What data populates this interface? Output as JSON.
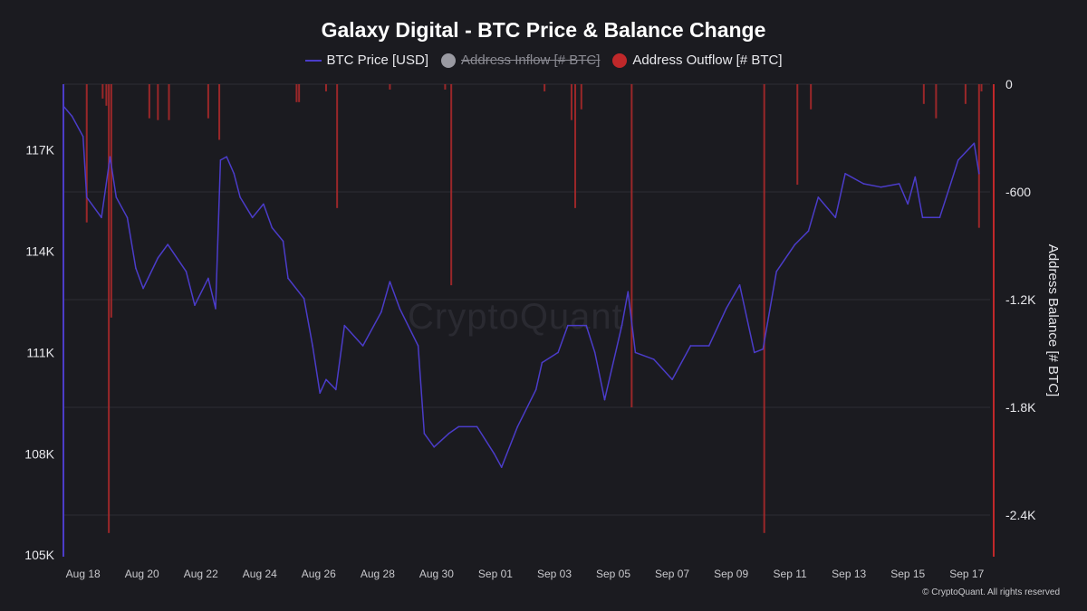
{
  "chart_data": {
    "type": "line+bar",
    "title": "Galaxy Digital - BTC Price & Balance Change",
    "legend": [
      {
        "name": "BTC Price [USD]",
        "color": "#4b3cc9",
        "marker": "line",
        "hidden": false
      },
      {
        "name": "Address Inflow [# BTC]",
        "color": "#9a9aa2",
        "marker": "dot",
        "hidden": true
      },
      {
        "name": "Address Outflow [# BTC]",
        "color": "#c0282a",
        "marker": "dot",
        "hidden": false
      }
    ],
    "legend_position": "top-center",
    "grid": true,
    "x_ticks": [
      "Aug 18",
      "Aug 20",
      "Aug 22",
      "Aug 24",
      "Aug 26",
      "Aug 28",
      "Aug 30",
      "Sep 01",
      "Sep 03",
      "Sep 05",
      "Sep 07",
      "Sep 09",
      "Sep 11",
      "Sep 13",
      "Sep 15",
      "Sep 17"
    ],
    "xlim": [
      "Aug 17 08:00",
      "Sep 17 19:00"
    ],
    "y_left": {
      "label": "",
      "ticks": [
        "105K",
        "108K",
        "111K",
        "114K",
        "117K"
      ],
      "tick_values": [
        105000,
        108000,
        111000,
        114000,
        117000
      ],
      "ylim": [
        104950,
        118950
      ]
    },
    "y_right": {
      "label": "Address Balance [# BTC]",
      "ticks": [
        "0",
        "-600",
        "-1.2K",
        "-1.8K",
        "-2.4K"
      ],
      "tick_values": [
        0,
        -600,
        -1200,
        -1800,
        -2400
      ],
      "ylim": [
        -2632,
        0
      ]
    },
    "price_series": {
      "name": "BTC Price [USD]",
      "axis": "left",
      "x": [
        "Aug 17 08:00",
        "Aug 17 15:00",
        "Aug 18 00:00",
        "Aug 18 03:00",
        "Aug 18 15:00",
        "Aug 18 22:00",
        "Aug 19 03:00",
        "Aug 19 12:00",
        "Aug 19 19:00",
        "Aug 20 01:00",
        "Aug 20 13:00",
        "Aug 20 21:00",
        "Aug 21 12:00",
        "Aug 21 19:00",
        "Aug 22 06:00",
        "Aug 22 12:00",
        "Aug 22 16:00",
        "Aug 22 21:00",
        "Aug 23 03:00",
        "Aug 23 08:00",
        "Aug 23 18:00",
        "Aug 24 03:00",
        "Aug 24 10:00",
        "Aug 24 19:00",
        "Aug 24 23:00",
        "Aug 25 12:00",
        "Aug 25 19:00",
        "Aug 26 01:00",
        "Aug 26 06:00",
        "Aug 26 14:00",
        "Aug 26 21:00",
        "Aug 27 12:00",
        "Aug 28 03:00",
        "Aug 28 10:00",
        "Aug 28 18:00",
        "Aug 29 09:00",
        "Aug 29 14:00",
        "Aug 29 22:00",
        "Aug 30 10:00",
        "Aug 30 18:00",
        "Aug 31 09:00",
        "Aug 31 23:00",
        "Sep 01 05:00",
        "Sep 01 18:00",
        "Sep 02 09:00",
        "Sep 02 14:00",
        "Sep 03 03:00",
        "Sep 03 11:00",
        "Sep 04 02:00",
        "Sep 04 09:00",
        "Sep 04 17:00",
        "Sep 05 07:00",
        "Sep 05 12:00",
        "Sep 05 18:00",
        "Sep 06 09:00",
        "Sep 07 00:00",
        "Sep 07 15:00",
        "Sep 08 06:00",
        "Sep 08 20:00",
        "Sep 09 07:00",
        "Sep 09 19:00",
        "Sep 10 02:00",
        "Sep 10 13:00",
        "Sep 11 04:00",
        "Sep 11 15:00",
        "Sep 11 23:00",
        "Sep 12 13:00",
        "Sep 12 21:00",
        "Sep 13 12:00",
        "Sep 14 02:00",
        "Sep 14 17:00",
        "Sep 15 00:00",
        "Sep 15 06:00",
        "Sep 15 12:00",
        "Sep 16 02:00",
        "Sep 16 10:00",
        "Sep 16 17:00",
        "Sep 17 06:00",
        "Sep 17 10:00"
      ],
      "y": [
        118300,
        118000,
        117400,
        115600,
        115000,
        116800,
        115600,
        115000,
        113500,
        112900,
        113800,
        114200,
        113400,
        112400,
        113200,
        112300,
        116700,
        116800,
        116300,
        115600,
        115000,
        115400,
        114700,
        114300,
        113200,
        112600,
        111200,
        109800,
        110200,
        109900,
        111800,
        111200,
        112200,
        113100,
        112300,
        111200,
        108600,
        108200,
        108600,
        108800,
        108800,
        108000,
        107600,
        108800,
        109900,
        110700,
        111000,
        111800,
        111800,
        111000,
        109600,
        111800,
        112800,
        111000,
        110800,
        110200,
        111200,
        111200,
        112300,
        113000,
        111000,
        111100,
        113400,
        114200,
        114600,
        115600,
        115000,
        116300,
        116000,
        115900,
        116000,
        115400,
        116200,
        115000,
        115000,
        115900,
        116700,
        117200,
        116300
      ]
    },
    "outflow_series": {
      "name": "Address Outflow [# BTC]",
      "axis": "right",
      "x": [
        "Aug 18 03:00",
        "Aug 18 16:00",
        "Aug 18 19:00",
        "Aug 18 21:00",
        "Aug 18 23:00",
        "Aug 20 06:00",
        "Aug 20 13:00",
        "Aug 20 22:00",
        "Aug 22 06:00",
        "Aug 22 15:00",
        "Aug 25 06:00",
        "Aug 25 08:00",
        "Aug 26 06:00",
        "Aug 26 15:00",
        "Aug 28 10:00",
        "Aug 30 07:00",
        "Aug 30 12:00",
        "Sep 02 16:00",
        "Sep 03 14:00",
        "Sep 03 17:00",
        "Sep 03 22:00",
        "Sep 05 15:00",
        "Sep 10 03:00",
        "Sep 11 06:00",
        "Sep 11 17:00",
        "Sep 15 13:00",
        "Sep 15 23:00",
        "Sep 16 23:00",
        "Sep 17 10:00",
        "Sep 17 12:00"
      ],
      "y": [
        -770,
        -80,
        -120,
        -2500,
        -1300,
        -190,
        -200,
        -200,
        -190,
        -310,
        -100,
        -100,
        -40,
        -690,
        -30,
        -30,
        -1120,
        -40,
        -200,
        -690,
        -140,
        -1800,
        -2500,
        -560,
        -140,
        -110,
        -190,
        -110,
        -800,
        -40
      ]
    }
  },
  "watermark": "CryptoQuant",
  "copyright": "© CryptoQuant. All rights reserved"
}
